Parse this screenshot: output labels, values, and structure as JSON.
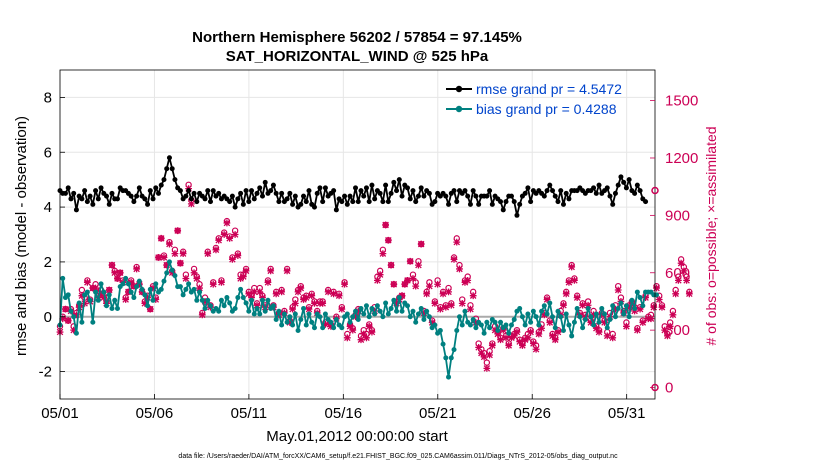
{
  "chart_data": {
    "type": "line",
    "title": "Northern Hemisphere 56202 / 57854 = 97.145%",
    "subtitle": "SAT_HORIZONTAL_WIND @ 525 hPa",
    "xlabel": "May.01,2012 00:00:00 start",
    "ylabel": "rmse and bias (model - observation)",
    "ylabel_right": "# of obs: o=possible; ×=assimilated",
    "xlim": [
      0,
      31.5
    ],
    "ylim": [
      -3,
      9
    ],
    "ylim_right": [
      -60,
      1660
    ],
    "x_ticks": [
      0,
      5,
      10,
      15,
      20,
      25,
      30
    ],
    "x_tick_labels": [
      "05/01",
      "05/06",
      "05/11",
      "05/16",
      "05/21",
      "05/26",
      "05/31"
    ],
    "y_ticks": [
      -2,
      0,
      2,
      4,
      6,
      8
    ],
    "y_tick_labels": [
      "-2",
      "0",
      "2",
      "4",
      "6",
      "8"
    ],
    "y_right_ticks": [
      0,
      300,
      600,
      900,
      1200,
      1500
    ],
    "y_right_tick_labels": [
      "0",
      "300",
      "600",
      "900",
      "1200",
      "1500"
    ],
    "grid": true,
    "legend_position": "top-right",
    "colors": {
      "rmse": "#000000",
      "bias": "#008080",
      "obs": "#cc0055",
      "zero": "#aaaaaa",
      "legend_text": "#0044cc"
    },
    "series": [
      {
        "name": "rmse grand pr = 4.5472",
        "axis": "left",
        "values": [
          4.6,
          4.5,
          4.5,
          4.7,
          4.3,
          4.5,
          3.9,
          4.4,
          4.3,
          4.6,
          4.2,
          4.4,
          4.1,
          4.6,
          4.3,
          4.7,
          4.5,
          4.4,
          4.1,
          4.5,
          4.3,
          4.3,
          4.7,
          4.6,
          4.6,
          4.5,
          4.4,
          4.2,
          4.4,
          4.7,
          4.4,
          4.3,
          4.1,
          4.6,
          4.3,
          4.7,
          4.5,
          4.8,
          5.0,
          5.4,
          5.8,
          5.4,
          5.0,
          4.7,
          4.6,
          4.3,
          4.4,
          4.6,
          4.3,
          4.5,
          4.2,
          4.5,
          4.4,
          4.3,
          4.6,
          4.2,
          4.6,
          4.4,
          4.5,
          4.3,
          4.4,
          4.3,
          4.2,
          4.4,
          4.0,
          4.3,
          4.5,
          4.1,
          4.6,
          4.2,
          4.6,
          4.3,
          4.5,
          4.7,
          4.4,
          4.9,
          4.5,
          4.6,
          4.8,
          4.5,
          4.2,
          4.5,
          4.2,
          4.3,
          4.5,
          4.1,
          4.4,
          4.0,
          4.1,
          4.4,
          4.2,
          4.6,
          4.1,
          4.0,
          4.5,
          4.7,
          4.2,
          4.7,
          4.4,
          4.5,
          4.6,
          3.9,
          4.3,
          4.2,
          4.4,
          4.1,
          4.4,
          4.2,
          4.7,
          4.2,
          4.6,
          4.4,
          4.7,
          4.2,
          4.8,
          4.3,
          4.6,
          4.5,
          4.2,
          4.8,
          4.2,
          4.5,
          4.9,
          4.6,
          5.0,
          4.4,
          4.8,
          4.7,
          4.3,
          4.6,
          4.2,
          4.4,
          4.7,
          4.4,
          4.6,
          4.5,
          4.1,
          4.2,
          4.5,
          4.4,
          4.5,
          4.4,
          4.1,
          4.5,
          4.6,
          4.2,
          4.6,
          4.5,
          4.6,
          4.4,
          4.1,
          4.6,
          4.4,
          4.1,
          4.4,
          4.4,
          4.4,
          4.6,
          4.1,
          4.4,
          4.3,
          4.2,
          3.9,
          4.2,
          4.4,
          4.4,
          4.2,
          3.7,
          4.1,
          4.4,
          4.5,
          4.7,
          4.2,
          4.6,
          4.5,
          4.6,
          4.5,
          4.4,
          4.6,
          4.8,
          4.6,
          4.4,
          4.2,
          4.6,
          4.1,
          4.5,
          4.3,
          4.6,
          4.6,
          4.6,
          4.7,
          4.6,
          4.5,
          4.6,
          4.6,
          4.7,
          4.5,
          4.8,
          4.5,
          4.6,
          4.7,
          4.4,
          4.1,
          4.5,
          4.8,
          5.1,
          4.9,
          4.7,
          5.0,
          4.6,
          4.5,
          4.8,
          4.6,
          4.3,
          4.2
        ]
      },
      {
        "name": "bias grand pr = 0.4288",
        "axis": "left",
        "values": [
          -0.3,
          1.4,
          0.7,
          0.8,
          0.2,
          0.0,
          -0.6,
          0.5,
          -0.2,
          0.8,
          0.9,
          0.6,
          -0.2,
          0.9,
          0.6,
          1.2,
          0.9,
          0.4,
          0.8,
          0.3,
          0.6,
          0.3,
          1.1,
          1.2,
          1.4,
          1.2,
          0.9,
          0.7,
          1.1,
          1.3,
          1.0,
          0.8,
          0.4,
          1.0,
          0.6,
          1.2,
          0.9,
          1.0,
          1.3,
          1.6,
          2.0,
          1.7,
          1.5,
          1.1,
          1.1,
          0.8,
          1.0,
          1.2,
          0.9,
          1.0,
          0.6,
          0.9,
          0.6,
          0.3,
          0.6,
          0.4,
          0.2,
          0.3,
          0.2,
          0.6,
          0.4,
          0.7,
          0.5,
          0.2,
          0.3,
          0.7,
          1.0,
          0.7,
          0.5,
          0.2,
          0.6,
          0.1,
          0.3,
          0.1,
          0.6,
          0.2,
          0.6,
          0.3,
          0.4,
          -0.1,
          0.2,
          -0.3,
          0.1,
          -0.2,
          0.0,
          -0.3,
          0.1,
          -0.5,
          -0.1,
          0.3,
          -0.3,
          0.1,
          -0.2,
          -0.4,
          0.1,
          0.0,
          -0.4,
          0.1,
          -0.1,
          -0.2,
          -0.4,
          -0.1,
          -0.3,
          -0.4,
          0.0,
          0.1,
          -0.2,
          0.0,
          0.2,
          -0.1,
          0.3,
          0.1,
          0.4,
          0.0,
          0.3,
          0.1,
          0.4,
          0.2,
          0.0,
          0.5,
          0.1,
          0.3,
          0.6,
          0.2,
          0.7,
          0.2,
          0.5,
          0.4,
          0.0,
          0.2,
          -0.2,
          0.1,
          0.3,
          -0.1,
          0.2,
          0.0,
          -0.4,
          -0.3,
          -0.6,
          -0.5,
          -1.0,
          -1.5,
          -2.2,
          -1.5,
          -1.2,
          -0.5,
          0.0,
          -0.3,
          0.2,
          -0.2,
          -0.3,
          -0.1,
          -0.4,
          -0.2,
          -0.3,
          -0.6,
          -0.2,
          -0.4,
          -0.1,
          -0.2,
          -0.5,
          -0.2,
          -0.4,
          -0.3,
          -0.6,
          -0.3,
          -0.1,
          0.2,
          0.3,
          0.0,
          -0.3,
          0.1,
          -0.2,
          0.2,
          0.0,
          -0.3,
          0.2,
          0.4,
          0.1,
          0.5,
          0.0,
          -0.4,
          0.2,
          0.0,
          -0.5,
          0.1,
          -0.3,
          -0.7,
          -0.2,
          0.3,
          0.0,
          -0.4,
          -0.1,
          0.3,
          0.0,
          -0.3,
          0.1,
          -0.2,
          0.3,
          0.1,
          -0.4,
          -0.1,
          0.4,
          0.0,
          0.3,
          0.5,
          0.1,
          0.4,
          0.0,
          0.6,
          0.3,
          0.9,
          0.7,
          0.4,
          0.9,
          0.9,
          0.9,
          0.8,
          0.8
        ]
      },
      {
        "name": "obs possible",
        "axis": "right",
        "marker": "o",
        "values": [
          320,
          370,
          410,
          350,
          410,
          320,
          390,
          430,
          510,
          470,
          560,
          460,
          520,
          540,
          480,
          510,
          480,
          450,
          510,
          640,
          610,
          570,
          600,
          560,
          470,
          500,
          560,
          530,
          630,
          540,
          500,
          450,
          480,
          410,
          530,
          470,
          680,
          780,
          690,
          640,
          760,
          610,
          720,
          820,
          650,
          710,
          590,
          1060,
          980,
          620,
          580,
          540,
          390,
          470,
          710,
          430,
          550,
          730,
          780,
          560,
          810,
          870,
          790,
          680,
          820,
          700,
          590,
          590,
          620,
          500,
          480,
          520,
          440,
          520,
          480,
          430,
          560,
          620,
          430,
          500,
          390,
          510,
          400,
          620,
          350,
          420,
          460,
          510,
          530,
          470,
          480,
          420,
          490,
          450,
          400,
          450,
          450,
          340,
          510,
          330,
          500,
          370,
          490,
          420,
          550,
          280,
          330,
          310,
          380,
          410,
          270,
          300,
          280,
          330,
          300,
          420,
          580,
          610,
          720,
          850,
          770,
          640,
          540,
          450,
          470,
          480,
          540,
          560,
          660,
          590,
          550,
          660,
          750,
          400,
          500,
          550,
          350,
          450,
          560,
          420,
          500,
          430,
          520,
          440,
          680,
          780,
          640,
          460,
          560,
          580,
          430,
          500,
          360,
          230,
          200,
          180,
          130,
          190,
          230,
          320,
          290,
          260,
          310,
          270,
          230,
          270,
          280,
          300,
          250,
          230,
          260,
          280,
          300,
          240,
          220,
          290,
          330,
          390,
          470,
          350,
          280,
          260,
          300,
          400,
          440,
          500,
          560,
          640,
          570,
          480,
          390,
          440,
          380,
          450,
          350,
          400,
          320,
          300,
          390,
          350,
          290,
          390,
          280,
          430,
          530,
          470,
          400,
          340,
          430,
          450,
          420,
          310,
          420,
          350,
          480,
          370,
          380,
          430,
          530,
          480,
          430,
          320,
          280,
          340,
          400,
          510,
          580,
          670,
          630,
          580,
          500
        ]
      },
      {
        "name": "obs assimilated",
        "axis": "right",
        "marker": "x",
        "values": [
          290,
          360,
          410,
          350,
          400,
          300,
          380,
          420,
          480,
          440,
          550,
          450,
          520,
          520,
          470,
          490,
          470,
          440,
          510,
          640,
          600,
          570,
          600,
          550,
          460,
          500,
          550,
          530,
          620,
          540,
          500,
          440,
          470,
          410,
          520,
          460,
          680,
          780,
          680,
          640,
          750,
          600,
          700,
          820,
          650,
          700,
          570,
          1040,
          960,
          600,
          570,
          520,
          380,
          450,
          700,
          420,
          540,
          720,
          770,
          550,
          800,
          860,
          780,
          670,
          800,
          690,
          570,
          580,
          610,
          490,
          470,
          500,
          430,
          500,
          470,
          420,
          550,
          610,
          420,
          490,
          380,
          500,
          390,
          610,
          340,
          410,
          440,
          500,
          520,
          460,
          470,
          410,
          480,
          440,
          390,
          440,
          440,
          330,
          500,
          320,
          490,
          360,
          480,
          410,
          540,
          260,
          320,
          300,
          370,
          400,
          250,
          280,
          260,
          320,
          290,
          400,
          560,
          590,
          700,
          850,
          770,
          640,
          540,
          440,
          460,
          480,
          540,
          560,
          660,
          570,
          530,
          640,
          750,
          390,
          490,
          530,
          340,
          440,
          540,
          410,
          490,
          420,
          500,
          430,
          670,
          760,
          620,
          440,
          550,
          560,
          410,
          480,
          340,
          210,
          180,
          160,
          100,
          170,
          220,
          300,
          280,
          250,
          300,
          260,
          220,
          260,
          270,
          290,
          240,
          220,
          250,
          260,
          290,
          230,
          200,
          280,
          310,
          380,
          460,
          340,
          270,
          250,
          290,
          380,
          430,
          490,
          550,
          630,
          560,
          470,
          380,
          430,
          370,
          430,
          340,
          380,
          310,
          290,
          380,
          340,
          270,
          370,
          260,
          410,
          510,
          450,
          390,
          320,
          420,
          440,
          400,
          300,
          410,
          340,
          470,
          360,
          360,
          420,
          520,
          460,
          420,
          300,
          270,
          320,
          380,
          490,
          560,
          650,
          610,
          560,
          490
        ]
      }
    ],
    "legend_entries": [
      "rmse grand pr = 4.5472",
      "bias grand pr = 0.4288"
    ],
    "right_axis_end_markers": [
      {
        "x": 31.5,
        "value": 1030,
        "marker": "o"
      },
      {
        "x": 31.5,
        "value": 0,
        "marker": "o"
      }
    ]
  },
  "footer": "data file: /Users/raeder/DAI/ATM_forcXX/CAM6_setup/f.e21.FHIST_BGC.f09_025.CAM6assim.011/Diags_NTrS_2012-05/obs_diag_output.nc"
}
